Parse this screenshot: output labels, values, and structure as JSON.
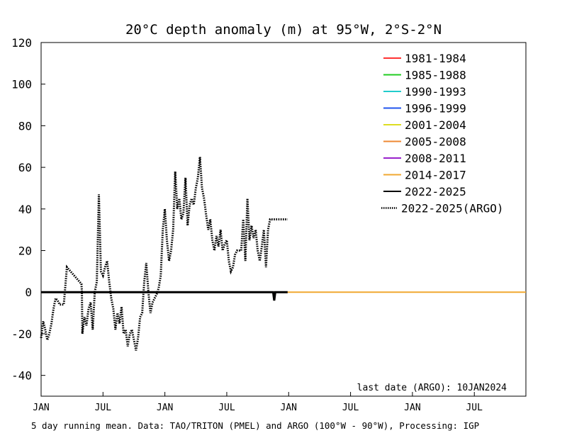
{
  "chart_data": {
    "type": "line",
    "title": "20°C depth anomaly (m) at 95°W, 2°S-2°N",
    "footer": "5 day running mean.  Data: TAO/TRITON (PMEL) and ARGO (100°W - 90°W), Processing: IGP",
    "annotation": "last date (ARGO): 10JAN2024",
    "ylim": [
      -50,
      120
    ],
    "yticks": [
      -40,
      -20,
      0,
      20,
      40,
      60,
      80,
      100,
      120
    ],
    "ytick_labels": [
      "-40",
      "-20",
      "0",
      "20",
      "40",
      "60",
      "80",
      "100",
      "120"
    ],
    "xlim": [
      0,
      47
    ],
    "xticks": [
      0,
      6,
      12,
      18,
      24,
      30,
      36,
      42
    ],
    "xtick_labels": [
      "JAN",
      "JUL",
      "JAN",
      "JUL",
      "JAN",
      "JUL",
      "JAN",
      "JUL"
    ],
    "grid": false,
    "legend_position": "top-right",
    "legend": [
      {
        "label": "1981-1984",
        "color": "#ff3333",
        "style": "solid"
      },
      {
        "label": "1985-1988",
        "color": "#22cc22",
        "style": "solid"
      },
      {
        "label": "1990-1993",
        "color": "#22cccc",
        "style": "solid"
      },
      {
        "label": "1996-1999",
        "color": "#2255ee",
        "style": "solid"
      },
      {
        "label": "2001-2004",
        "color": "#dddd22",
        "style": "solid"
      },
      {
        "label": "2005-2008",
        "color": "#ee8833",
        "style": "solid"
      },
      {
        "label": "2008-2011",
        "color": "#9922cc",
        "style": "solid"
      },
      {
        "label": "2014-2017",
        "color": "#f0a830",
        "style": "solid"
      },
      {
        "label": "2022-2025",
        "color": "#000000",
        "style": "solid"
      },
      {
        "label": "2022-2025(ARGO)",
        "color": "#000000",
        "style": "dotted"
      }
    ],
    "series": [
      {
        "name": "2014-2017",
        "color": "#f0a830",
        "style": "solid",
        "x": [
          0,
          47
        ],
        "y": [
          0,
          0
        ]
      },
      {
        "name": "2022-2025",
        "color": "#000000",
        "style": "solid",
        "x": [
          0,
          22.5,
          22.6,
          22.7,
          22.8,
          23.9
        ],
        "y": [
          0,
          0,
          -4,
          0,
          0,
          0
        ]
      },
      {
        "name": "2022-2025(ARGO)",
        "color": "#000000",
        "style": "dotted",
        "x": [
          0.0,
          0.2,
          0.4,
          0.6,
          0.8,
          1.0,
          1.2,
          1.4,
          1.6,
          1.8,
          2.0,
          2.2,
          2.5,
          3.9,
          3.95,
          4.0,
          4.2,
          4.4,
          4.6,
          4.8,
          5.0,
          5.2,
          5.4,
          5.6,
          5.8,
          6.0,
          6.2,
          6.4,
          6.6,
          6.8,
          7.0,
          7.2,
          7.4,
          7.6,
          7.8,
          8.0,
          8.2,
          8.4,
          8.6,
          8.8,
          9.0,
          9.2,
          9.4,
          9.6,
          9.8,
          10.0,
          10.2,
          10.4,
          10.6,
          10.8,
          11.0,
          11.2,
          11.4,
          11.6,
          11.8,
          12.0,
          12.2,
          12.4,
          12.6,
          12.8,
          13.0,
          13.2,
          13.4,
          13.6,
          13.8,
          14.0,
          14.2,
          14.4,
          14.6,
          14.8,
          15.0,
          15.2,
          15.4,
          15.6,
          15.8,
          16.0,
          16.2,
          16.4,
          16.6,
          16.8,
          17.0,
          17.2,
          17.4,
          17.6,
          17.8,
          18.0,
          18.2,
          18.4,
          18.6,
          18.8,
          19.0,
          19.2,
          19.4,
          19.6,
          19.8,
          20.0,
          20.2,
          20.4,
          20.6,
          20.8,
          21.0,
          21.2,
          21.4,
          21.6,
          21.8,
          22.0,
          22.2,
          22.4,
          22.6,
          22.8,
          23.0,
          23.2,
          23.4,
          23.6,
          23.8,
          23.9
        ],
        "y": [
          -22,
          -14,
          -18,
          -23,
          -20,
          -15,
          -8,
          -3,
          -4,
          -6,
          -6,
          -6,
          12,
          4,
          1,
          -20,
          -12,
          -16,
          -8,
          -5,
          -18,
          0,
          5,
          47,
          10,
          8,
          12,
          15,
          5,
          -3,
          -8,
          -18,
          -10,
          -15,
          -7,
          -20,
          -18,
          -26,
          -20,
          -18,
          -23,
          -28,
          -22,
          -12,
          -10,
          5,
          14,
          0,
          -10,
          -5,
          -3,
          -1,
          2,
          8,
          30,
          40,
          25,
          15,
          20,
          30,
          58,
          40,
          45,
          35,
          38,
          55,
          32,
          42,
          45,
          42,
          50,
          55,
          65,
          50,
          45,
          37,
          30,
          35,
          25,
          20,
          27,
          22,
          30,
          20,
          23,
          25,
          15,
          10,
          12,
          18,
          20,
          20,
          20,
          35,
          15,
          45,
          25,
          32,
          26,
          30,
          20,
          15,
          22,
          30,
          12,
          30,
          35,
          35,
          35,
          35,
          35,
          35,
          35,
          35,
          35,
          35
        ]
      }
    ]
  }
}
